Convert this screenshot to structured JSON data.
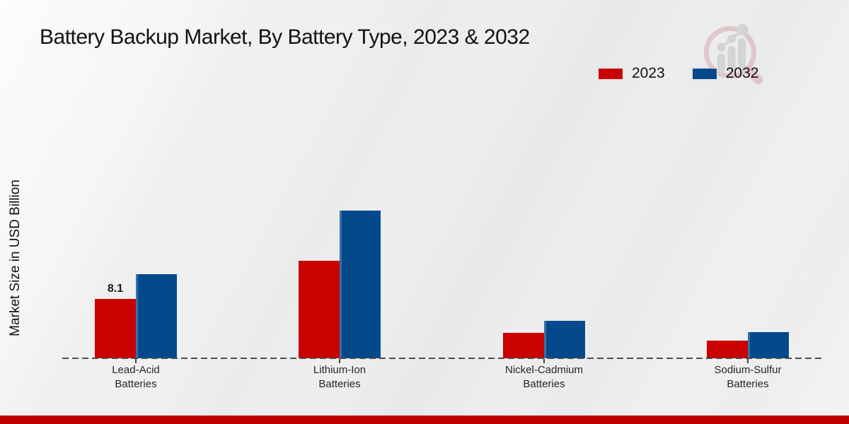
{
  "title": "Battery Backup Market, By Battery Type, 2023 & 2032",
  "y_axis_label": "Market Size in USD Billion",
  "legend": [
    {
      "label": "2023",
      "color": "#c90101"
    },
    {
      "label": "2032",
      "color": "#04498b"
    }
  ],
  "logo": {
    "name": "magnifier-bar-chart-watermark",
    "ring_color": "#dcb8bd",
    "bar_color": "#d0d0d2"
  },
  "accent_colors": {
    "bottom_stripe": "#c00000",
    "baseline_dash": "#4d4d4d"
  },
  "chart_data": {
    "type": "bar",
    "title": "Battery Backup Market, By Battery Type, 2023 & 2032",
    "xlabel": "",
    "ylabel": "Market Size in USD Billion",
    "units": "USD Billion",
    "categories": [
      [
        "Lead-Acid",
        "Batteries"
      ],
      [
        "Lithium-Ion",
        "Batteries"
      ],
      [
        "Nickel-Cadmium",
        "Batteries"
      ],
      [
        "Sodium-Sulfur",
        "Batteries"
      ]
    ],
    "series": [
      {
        "name": "2023",
        "color": "#c90101",
        "values": [
          8.1,
          13.3,
          3.5,
          2.4
        ],
        "data_labels": [
          "8.1",
          "",
          "",
          ""
        ]
      },
      {
        "name": "2032",
        "color": "#04498b",
        "values": [
          11.5,
          20.2,
          5.1,
          3.6
        ],
        "data_labels": [
          "",
          "",
          "",
          ""
        ]
      }
    ],
    "ylim": [
      0,
      25
    ],
    "grid": false,
    "y_axis_ticks_visible": false,
    "baseline_style": "dashed",
    "legend_position": "top-right"
  }
}
